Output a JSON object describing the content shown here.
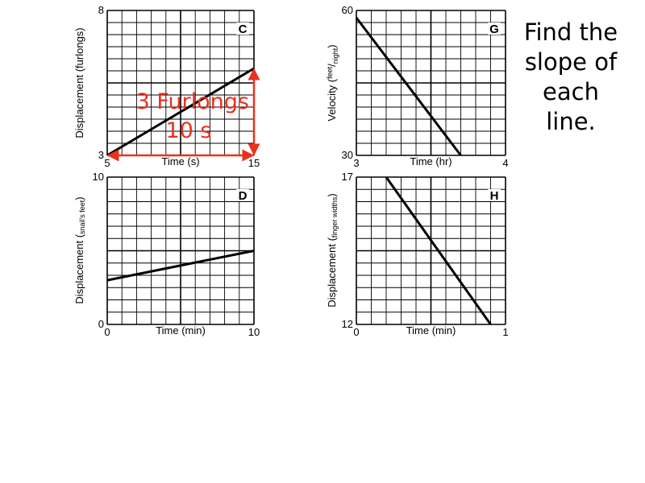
{
  "prompt": "Find the slope of each line.",
  "colors": {
    "grid": "#000000",
    "line": "#000000",
    "annotation": "#e8321e"
  },
  "chart_data": [
    {
      "type": "line",
      "panel_label": "C",
      "xlabel": "Time (s)",
      "ylabel": "Displacement (furlongs)",
      "xlim": [
        5,
        15
      ],
      "ylim": [
        3,
        8
      ],
      "x_ticks": [
        "5",
        "15"
      ],
      "y_ticks": [
        "3",
        "8"
      ],
      "grid": true,
      "series": [
        {
          "x": [
            5,
            15
          ],
          "y": [
            3.0,
            6.0
          ]
        }
      ],
      "annotations": {
        "rise_label": "3 Furlongs",
        "run_label": "10 s",
        "run": {
          "x": [
            5,
            15
          ],
          "y": 3.0
        },
        "rise": {
          "x": 15,
          "y": [
            3.0,
            6.0
          ]
        }
      }
    },
    {
      "type": "line",
      "panel_label": "G",
      "xlabel": "Time (hr)",
      "ylabel": "Velocity (feet/night)",
      "ylabel_main": "Velocity",
      "ylabel_num": "feet",
      "ylabel_den": "night",
      "xlim": [
        3,
        4
      ],
      "ylim": [
        30,
        60
      ],
      "x_ticks": [
        "3",
        "4"
      ],
      "y_ticks": [
        "30",
        "60"
      ],
      "grid": true,
      "series": [
        {
          "x": [
            3.0,
            3.7
          ],
          "y": [
            58.5,
            30.0
          ]
        }
      ]
    },
    {
      "type": "line",
      "panel_label": "D",
      "xlabel": "Time (min)",
      "ylabel": "Displacement (snail's feet)",
      "ylabel_main": "Displacement",
      "ylabel_sub": "snail's feet",
      "xlim": [
        0,
        10
      ],
      "ylim": [
        0,
        10
      ],
      "x_ticks": [
        "0",
        "10"
      ],
      "y_ticks": [
        "0",
        "10"
      ],
      "grid": true,
      "series": [
        {
          "x": [
            0,
            10
          ],
          "y": [
            3.0,
            5.0
          ]
        }
      ]
    },
    {
      "type": "line",
      "panel_label": "H",
      "xlabel": "Time (min)",
      "ylabel": "Displacement (finger widths)",
      "ylabel_main": "Displacement",
      "ylabel_sub": "finger widths",
      "xlim": [
        0,
        1
      ],
      "ylim": [
        12,
        17
      ],
      "x_ticks": [
        "0",
        "1"
      ],
      "y_ticks": [
        "12",
        "17"
      ],
      "grid": true,
      "series": [
        {
          "x": [
            0.2,
            0.9
          ],
          "y": [
            17.0,
            12.0
          ]
        }
      ]
    }
  ]
}
